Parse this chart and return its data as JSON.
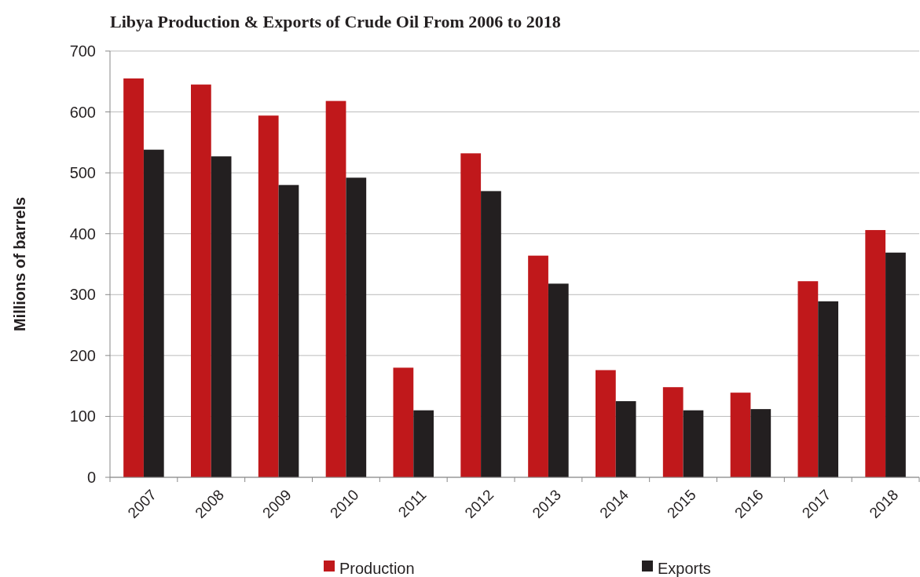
{
  "chart_data": {
    "type": "bar",
    "title": "Libya Production & Exports of Crude Oil From 2006 to 2018",
    "ylabel": "Millions of barrels",
    "categories": [
      "2007",
      "2008",
      "2009",
      "2010",
      "2011",
      "2012",
      "2013",
      "2014",
      "2015",
      "2016",
      "2017",
      "2018"
    ],
    "series": [
      {
        "name": "Production",
        "color": "#c0181b",
        "values": [
          655,
          645,
          594,
          618,
          180,
          532,
          364,
          176,
          148,
          139,
          322,
          406
        ]
      },
      {
        "name": "Exports",
        "color": "#231f20",
        "values": [
          538,
          527,
          480,
          492,
          110,
          470,
          318,
          125,
          110,
          112,
          289,
          369
        ]
      }
    ],
    "ylim": [
      0,
      700
    ],
    "yticks": [
      0,
      100,
      200,
      300,
      400,
      500,
      600,
      700
    ],
    "grid": "y",
    "legend": "bottom"
  }
}
